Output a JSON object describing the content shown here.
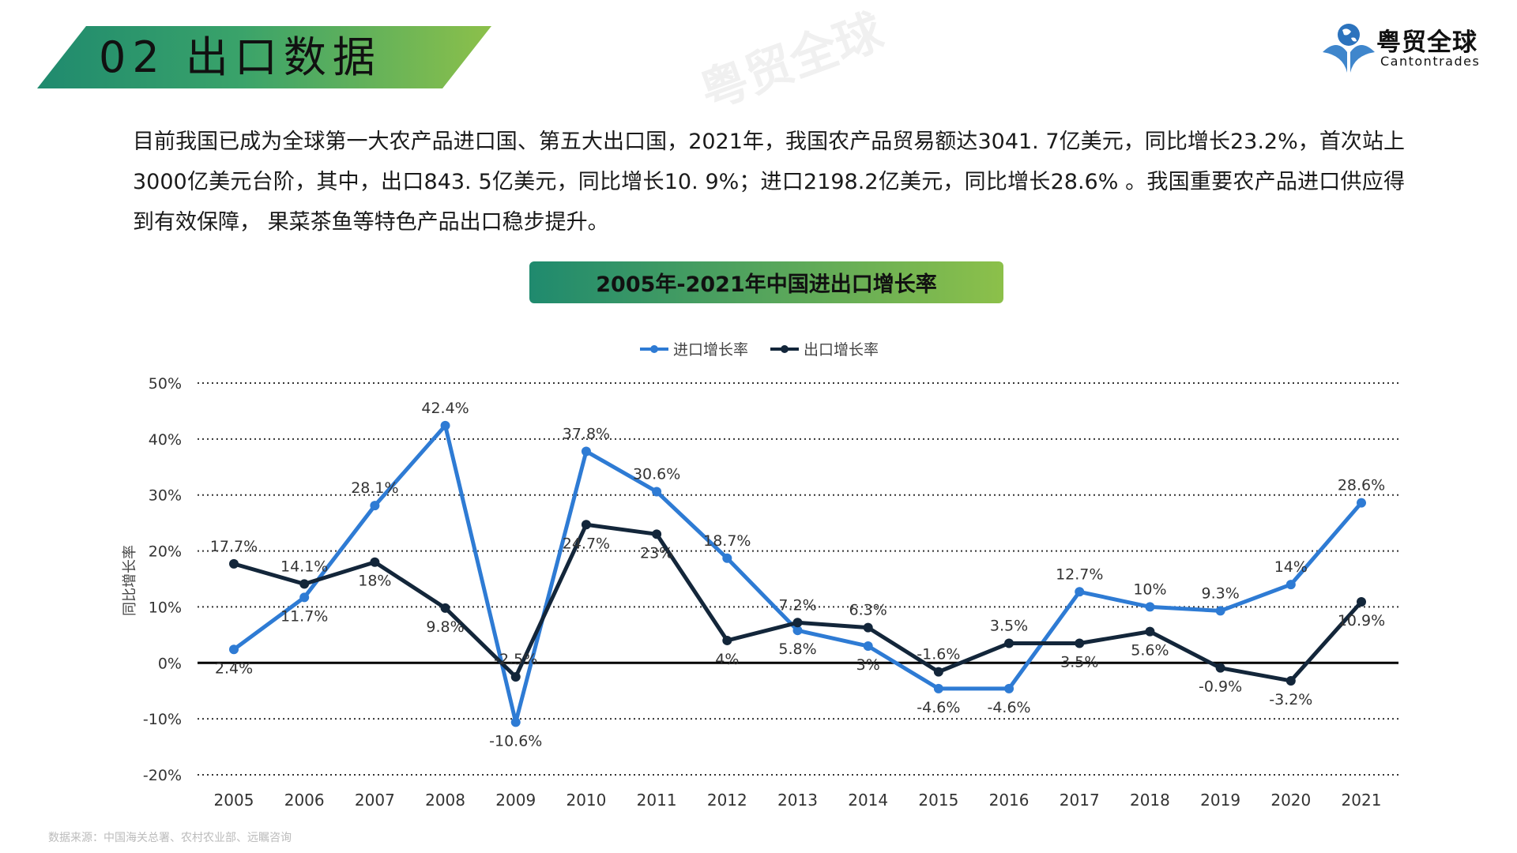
{
  "header": {
    "section_title": "02  出口数据"
  },
  "logo": {
    "name_cn": "粤贸全球",
    "name_en": "Cantontrades"
  },
  "paragraph": "目前我国已成为全球第一大农产品进口国、第五大出口国，2021年，我国农产品贸易额达3041. 7亿美元，同比增长23.2%，首次站上3000亿美元台阶，其中，出口843. 5亿美元，同比增长10. 9%；进口2198.2亿美元，同比增长28.6% 。我国重要农产品进口供应得到有效保障， 果菜茶鱼等特色产品出口稳步提升。",
  "source": "数据来源：中国海关总署、农村农业部、远瞩咨询",
  "watermark": "粤贸全球",
  "chart_data": {
    "type": "line",
    "title": "2005年-2021年中国进出口增长率",
    "ylabel": "同比增长率",
    "xlabel": "",
    "categories": [
      "2005",
      "2006",
      "2007",
      "2008",
      "2009",
      "2010",
      "2011",
      "2012",
      "2013",
      "2014",
      "2015",
      "2016",
      "2017",
      "2018",
      "2019",
      "2020",
      "2021"
    ],
    "ylim": [
      -20,
      50
    ],
    "yticks": [
      "50%",
      "40%",
      "30%",
      "20%",
      "10%",
      "0%",
      "-10%",
      "-20%"
    ],
    "ytick_values": [
      50,
      40,
      30,
      20,
      10,
      0,
      -10,
      -20
    ],
    "grid": true,
    "legend_position": "top",
    "series": [
      {
        "name": "进口增长率",
        "color": "#2e7bd4",
        "values": [
          2.4,
          11.7,
          28.1,
          42.4,
          -10.6,
          37.8,
          30.6,
          18.7,
          5.8,
          3,
          -4.6,
          -4.6,
          12.7,
          10,
          9.3,
          14,
          28.6
        ],
        "labels": [
          "2.4%",
          "11.7%",
          "28.1%",
          "42.4%",
          "-10.6%",
          "37.8%",
          "30.6%",
          "18.7%",
          "5.8%",
          "3%",
          "-4.6%",
          "-4.6%",
          "12.7%",
          "10%",
          "9.3%",
          "14%",
          "28.6%"
        ]
      },
      {
        "name": "出口增长率",
        "color": "#13263a",
        "values": [
          17.7,
          14.1,
          18,
          9.8,
          -2.5,
          24.7,
          23,
          4,
          7.2,
          6.3,
          -1.6,
          3.5,
          3.5,
          5.6,
          -0.9,
          -3.2,
          10.9
        ],
        "labels": [
          "17.7%",
          "14.1%",
          "18%",
          "9.8%",
          "-2.5%",
          "24.7%",
          "23%",
          "4%",
          "7.2%",
          "6.3%",
          "-1.6%",
          "3.5%",
          "3.5%",
          "5.6%",
          "-0.9%",
          "-3.2%",
          "10.9%"
        ]
      }
    ]
  }
}
